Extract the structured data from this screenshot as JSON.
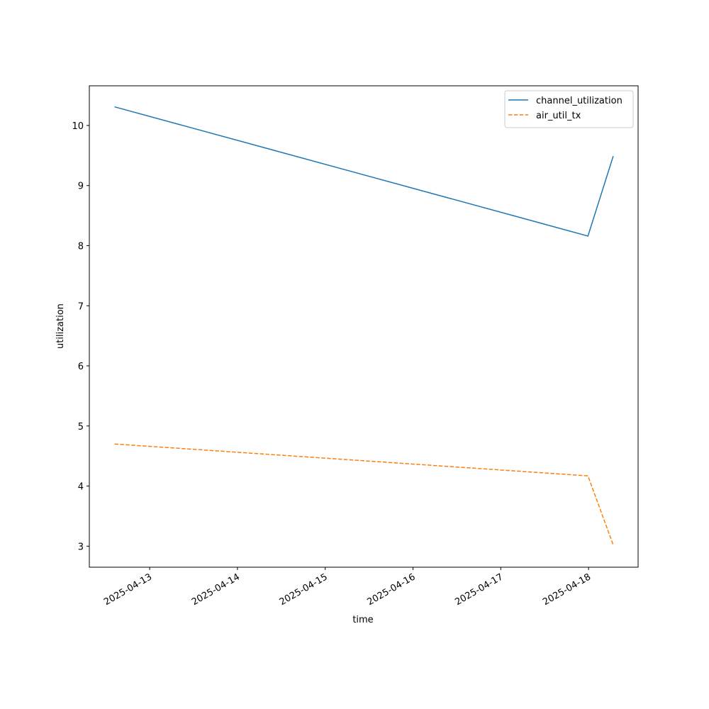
{
  "chart_data": {
    "type": "line",
    "x": [
      "2025-04-12T14:24",
      "2025-04-17T23:50",
      "2025-04-18T06:45"
    ],
    "series": [
      {
        "name": "channel_utilization",
        "color": "#1f77b4",
        "dash": "solid",
        "values": [
          10.31,
          8.16,
          9.49
        ]
      },
      {
        "name": "air_util_tx",
        "color": "#ff7f0e",
        "dash": "dashed",
        "values": [
          4.7,
          4.17,
          3.02
        ]
      }
    ],
    "xlabel": "time",
    "ylabel": "utilization",
    "xlim": [
      "2025-04-12T07:30",
      "2025-04-18T13:33"
    ],
    "xticks": [
      "2025-04-13",
      "2025-04-14",
      "2025-04-15",
      "2025-04-16",
      "2025-04-17",
      "2025-04-18"
    ],
    "ylim": [
      2.65,
      10.66
    ],
    "yticks": [
      3,
      4,
      5,
      6,
      7,
      8,
      9,
      10
    ],
    "legend": "upper right"
  }
}
